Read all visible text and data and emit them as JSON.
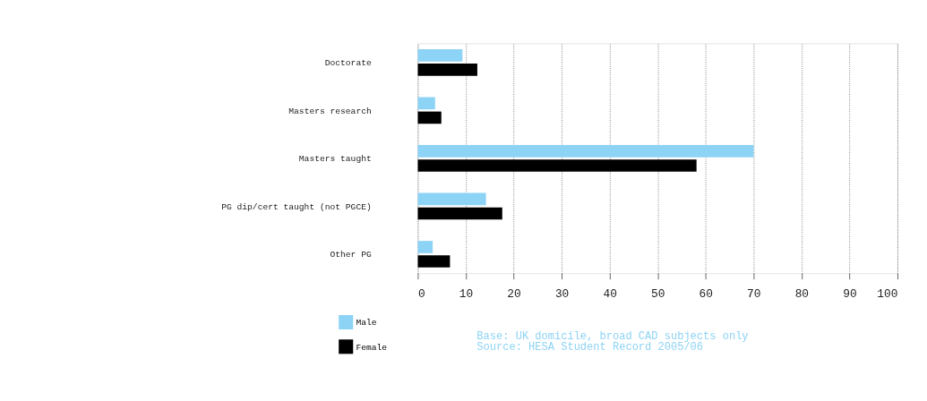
{
  "chart_data": {
    "type": "bar",
    "orientation": "horizontal",
    "categories": [
      "Doctorate",
      "Masters research",
      "Masters taught",
      "PG dip/cert taught (not PGCE)",
      "Other PG"
    ],
    "series": [
      {
        "name": "Male",
        "color": "#8dd3f5",
        "values": [
          9.3,
          3.6,
          70,
          14.2,
          3.1
        ]
      },
      {
        "name": "Female",
        "color": "#000000",
        "values": [
          12.4,
          4.9,
          58.1,
          17.6,
          6.7
        ]
      }
    ],
    "xlim": [
      0,
      100
    ],
    "xticks": [
      0,
      10,
      20,
      30,
      40,
      50,
      60,
      70,
      80,
      90,
      100
    ],
    "grid": "x",
    "legend": "bottom left",
    "annotations": [
      "Base: UK domicile, broad CAD subjects only",
      "Source: HESA Student Record 2005/06"
    ]
  }
}
